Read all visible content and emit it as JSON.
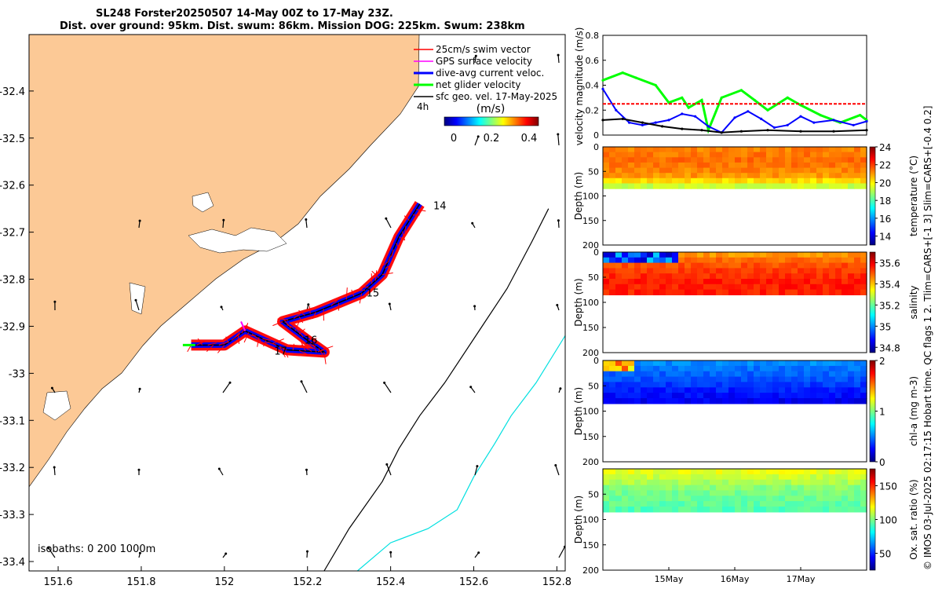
{
  "header": {
    "line1": "SL248 Forster20250507 14-May 00Z to 17-May 23Z.",
    "line2": "Dist. over ground: 95km. Dist. swum: 86km. Mission DOG: 225km. Swum: 238km"
  },
  "side_note": "© IMOS 03-Jul-2025 02:17:15 Hobart time. QC flags 1  2. Tlim=CARS+[-1 3] Slim=CARS+[-0.4 0.2]",
  "colors": {
    "land": "#FCC996",
    "swim_vector": "#FF0000",
    "gps_velocity": "#FF00FF",
    "current": "#0000FF",
    "glider": "#00FF00",
    "geostrophic": "#000000",
    "isobath_1000": "#00E0E0"
  },
  "chart_data": [
    {
      "type": "map",
      "name": "glider track map",
      "x_ticks": [
        "151.6",
        "151.8",
        "152",
        "152.2",
        "152.4",
        "152.6",
        "152.8"
      ],
      "y_ticks": [
        "-32.4",
        "-32.5",
        "-32.6",
        "-32.7",
        "-32.8",
        "-32.9",
        "-33",
        "-33.1",
        "-33.2",
        "-33.3",
        "-33.4"
      ],
      "xlim": [
        151.53,
        152.82
      ],
      "ylim": [
        -33.42,
        -32.28
      ],
      "legend": [
        {
          "label": "25cm/s swim vector",
          "color": "#FF0000"
        },
        {
          "label": "GPS surface velocity",
          "color": "#FF00FF"
        },
        {
          "label": "dive-avg current veloc.",
          "color": "#0000FF"
        },
        {
          "label": "net glider velocity",
          "color": "#00FF00"
        },
        {
          "label": "sfc geo. vel. 17-May-2025",
          "color": "#000000"
        }
      ],
      "legend_placement": "top-right",
      "legend_extra": "4h",
      "colorbar": {
        "label": "(m/s)",
        "ticks": [
          "0",
          "0.2",
          "0.4"
        ],
        "range": [
          0,
          0.5
        ]
      },
      "track_labels": [
        "14",
        "15",
        "16",
        "17"
      ],
      "track": [
        [
          151.92,
          -32.94
        ],
        [
          152.0,
          -32.94
        ],
        [
          152.05,
          -32.91
        ],
        [
          152.1,
          -32.93
        ],
        [
          152.15,
          -32.95
        ],
        [
          152.24,
          -32.955
        ],
        [
          152.2,
          -32.93
        ],
        [
          152.14,
          -32.89
        ],
        [
          152.22,
          -32.87
        ],
        [
          152.33,
          -32.83
        ],
        [
          152.38,
          -32.79
        ],
        [
          152.42,
          -32.71
        ],
        [
          152.47,
          -32.64
        ]
      ],
      "isobaths_label": "isobaths: 0   200  1000m",
      "isobath_200": [
        [
          152.78,
          -32.65
        ],
        [
          152.74,
          -32.72
        ],
        [
          152.68,
          -32.82
        ],
        [
          152.62,
          -32.9
        ],
        [
          152.53,
          -33.02
        ],
        [
          152.47,
          -33.09
        ],
        [
          152.42,
          -33.16
        ],
        [
          152.38,
          -33.23
        ],
        [
          152.3,
          -33.33
        ],
        [
          152.24,
          -33.42
        ]
      ],
      "isobath_1000": [
        [
          152.82,
          -32.92
        ],
        [
          152.75,
          -33.02
        ],
        [
          152.69,
          -33.09
        ],
        [
          152.65,
          -33.15
        ],
        [
          152.6,
          -33.22
        ],
        [
          152.56,
          -33.29
        ],
        [
          152.49,
          -33.33
        ],
        [
          152.4,
          -33.36
        ],
        [
          152.32,
          -33.42
        ]
      ]
    },
    {
      "type": "line",
      "name": "velocity magnitude",
      "ylabel": "velocity magnitude (m/s)",
      "ylim": [
        0,
        0.8
      ],
      "y_ticks": [
        "0",
        "0.2",
        "0.4",
        "0.6",
        "0.8"
      ],
      "x_range_days": [
        0,
        4
      ],
      "series": [
        {
          "name": "net glider velocity",
          "color": "#00FF00",
          "x": [
            0,
            0.3,
            0.5,
            0.8,
            1.0,
            1.2,
            1.3,
            1.5,
            1.6,
            1.8,
            2.1,
            2.3,
            2.5,
            2.8,
            3.0,
            3.3,
            3.6,
            3.9,
            4.0
          ],
          "values": [
            0.44,
            0.5,
            0.46,
            0.4,
            0.26,
            0.3,
            0.22,
            0.28,
            0.04,
            0.3,
            0.36,
            0.28,
            0.2,
            0.3,
            0.24,
            0.16,
            0.1,
            0.16,
            0.12
          ]
        },
        {
          "name": "dive-avg current veloc.",
          "color": "#0000FF",
          "x": [
            0,
            0.2,
            0.4,
            0.6,
            0.8,
            1.0,
            1.2,
            1.4,
            1.6,
            1.8,
            2.0,
            2.2,
            2.4,
            2.6,
            2.8,
            3.0,
            3.2,
            3.5,
            3.8,
            4.0
          ],
          "values": [
            0.37,
            0.2,
            0.1,
            0.08,
            0.1,
            0.12,
            0.17,
            0.15,
            0.07,
            0.02,
            0.14,
            0.19,
            0.13,
            0.06,
            0.08,
            0.15,
            0.1,
            0.12,
            0.08,
            0.11
          ]
        },
        {
          "name": "sfc geo. vel.",
          "color": "#000000",
          "x": [
            0,
            0.3,
            0.6,
            0.9,
            1.2,
            1.5,
            1.8,
            2.1,
            2.5,
            3.0,
            3.5,
            4.0
          ],
          "values": [
            0.12,
            0.13,
            0.1,
            0.07,
            0.05,
            0.04,
            0.02,
            0.03,
            0.04,
            0.03,
            0.03,
            0.04
          ]
        },
        {
          "name": "25cm/s swim vector",
          "color": "#FF0000",
          "x": [
            0,
            4
          ],
          "values": [
            0.25,
            0.25
          ]
        }
      ]
    },
    {
      "type": "heatmap",
      "name": "temperature section",
      "ylabel": "Depth (m)",
      "y_ticks": [
        "0",
        "50",
        "100",
        "150",
        "200"
      ],
      "ylim": [
        200,
        0
      ],
      "data_depth_max": 85,
      "colorbar_label": "temperature (°C)",
      "colorbar_ticks": [
        "14",
        "16",
        "18",
        "20",
        "22",
        "24"
      ],
      "colorbar_range": [
        13,
        24
      ],
      "profile": {
        "depths": [
          0,
          30,
          60,
          72,
          85
        ],
        "values": [
          21.2,
          21.5,
          21.0,
          20.0,
          18.8
        ]
      }
    },
    {
      "type": "heatmap",
      "name": "salinity section",
      "ylabel": "Depth (m)",
      "y_ticks": [
        "0",
        "50",
        "100",
        "150",
        "200"
      ],
      "ylim": [
        200,
        0
      ],
      "data_depth_max": 85,
      "colorbar_label": "salinity",
      "colorbar_ticks": [
        "34.8",
        "35",
        "35.2",
        "35.4",
        "35.6"
      ],
      "colorbar_range": [
        34.75,
        35.7
      ],
      "profile": {
        "depths": [
          0,
          15,
          30,
          60,
          85
        ],
        "values": [
          35.42,
          35.48,
          35.52,
          35.56,
          35.55
        ]
      }
    },
    {
      "type": "heatmap",
      "name": "chl-a section",
      "ylabel": "Depth (m)",
      "y_ticks": [
        "0",
        "50",
        "100",
        "150",
        "200"
      ],
      "ylim": [
        200,
        0
      ],
      "data_depth_max": 85,
      "colorbar_label": "chl-a (mg m-3)",
      "colorbar_ticks": [
        "0",
        "1",
        "2"
      ],
      "colorbar_range": [
        0,
        2
      ],
      "profile": {
        "depths": [
          0,
          20,
          40,
          60,
          85
        ],
        "values": [
          0.55,
          0.45,
          0.4,
          0.3,
          0.2
        ]
      }
    },
    {
      "type": "heatmap",
      "name": "oxygen saturation section",
      "ylabel": "Depth (m)",
      "y_ticks": [
        "50",
        "100",
        "150",
        "200"
      ],
      "ylim": [
        200,
        0
      ],
      "data_depth_max": 85,
      "colorbar_label": "Ox. sat. ratio (%)",
      "colorbar_ticks": [
        "50",
        "100",
        "150"
      ],
      "colorbar_range": [
        25,
        175
      ],
      "profile": {
        "depths": [
          0,
          20,
          40,
          60,
          85
        ],
        "values": [
          118,
          110,
          100,
          97,
          92
        ]
      },
      "x_ticks": [
        "15May",
        "16May",
        "17May"
      ],
      "x_tick_days": [
        1,
        2,
        3
      ]
    }
  ]
}
